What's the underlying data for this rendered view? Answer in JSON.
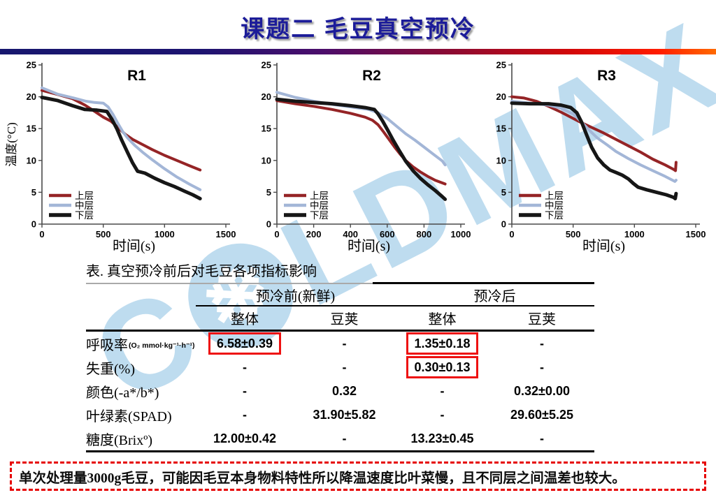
{
  "header": {
    "title": "课题二  毛豆真空预冷"
  },
  "watermark": {
    "part1": "C",
    "snowflake_icon": "❄",
    "part2": "LDMAX",
    "color": "#bedcef"
  },
  "chart_data": [
    {
      "type": "line",
      "id": "r1",
      "title": "R1",
      "xlabel": "时间(s)",
      "ylabel": "温度(°C)",
      "show_ylabel": true,
      "xlim": [
        0,
        1500
      ],
      "ylim": [
        0,
        25
      ],
      "x_ticks": [
        0,
        500,
        1000,
        1500
      ],
      "y_ticks": [
        0,
        5,
        10,
        15,
        20,
        25
      ],
      "legend_position": "lower-left",
      "grid": false,
      "series": [
        {
          "name": "上层",
          "color": "#952426",
          "line_width": 4,
          "points": [
            [
              0,
              21.0
            ],
            [
              120,
              20.4
            ],
            [
              250,
              19.7
            ],
            [
              350,
              18.7
            ],
            [
              430,
              17.7
            ],
            [
              500,
              16.8
            ],
            [
              560,
              16.2
            ],
            [
              620,
              15.2
            ],
            [
              680,
              14.1
            ],
            [
              740,
              13.3
            ],
            [
              820,
              12.5
            ],
            [
              900,
              11.7
            ],
            [
              1000,
              10.8
            ],
            [
              1100,
              10.0
            ],
            [
              1200,
              9.2
            ],
            [
              1290,
              8.5
            ]
          ]
        },
        {
          "name": "中层",
          "color": "#a3b6d7",
          "line_width": 4,
          "points": [
            [
              0,
              21.4
            ],
            [
              130,
              20.4
            ],
            [
              260,
              19.8
            ],
            [
              360,
              19.3
            ],
            [
              430,
              19.1
            ],
            [
              500,
              19.0
            ],
            [
              540,
              18.4
            ],
            [
              580,
              17.2
            ],
            [
              620,
              15.8
            ],
            [
              660,
              14.5
            ],
            [
              700,
              13.5
            ],
            [
              760,
              12.3
            ],
            [
              820,
              11.3
            ],
            [
              900,
              10.1
            ],
            [
              1000,
              8.7
            ],
            [
              1100,
              7.4
            ],
            [
              1200,
              6.3
            ],
            [
              1290,
              5.4
            ]
          ]
        },
        {
          "name": "下层",
          "color": "#161616",
          "line_width": 5,
          "points": [
            [
              0,
              19.9
            ],
            [
              130,
              19.4
            ],
            [
              250,
              18.6
            ],
            [
              350,
              18.0
            ],
            [
              450,
              17.9
            ],
            [
              530,
              17.7
            ],
            [
              570,
              16.5
            ],
            [
              610,
              15.0
            ],
            [
              650,
              13.2
            ],
            [
              700,
              11.2
            ],
            [
              740,
              9.6
            ],
            [
              780,
              8.3
            ],
            [
              840,
              8.0
            ],
            [
              920,
              7.2
            ],
            [
              1000,
              6.5
            ],
            [
              1080,
              5.9
            ],
            [
              1160,
              5.2
            ],
            [
              1230,
              4.6
            ],
            [
              1290,
              4.0
            ]
          ]
        }
      ]
    },
    {
      "type": "line",
      "id": "r2",
      "title": "R2",
      "xlabel": "时间(s)",
      "ylabel": "温度(°C)",
      "show_ylabel": false,
      "xlim": [
        0,
        1000
      ],
      "ylim": [
        0,
        25
      ],
      "x_ticks": [
        0,
        200,
        400,
        600,
        800,
        1000
      ],
      "y_ticks": [
        0,
        5,
        10,
        15,
        20,
        25
      ],
      "legend_position": "lower-left",
      "grid": false,
      "series": [
        {
          "name": "上层",
          "color": "#952426",
          "line_width": 4,
          "points": [
            [
              0,
              19.4
            ],
            [
              100,
              18.9
            ],
            [
              200,
              18.5
            ],
            [
              300,
              18.0
            ],
            [
              400,
              17.4
            ],
            [
              480,
              16.8
            ],
            [
              520,
              16.3
            ],
            [
              550,
              15.6
            ],
            [
              580,
              14.5
            ],
            [
              610,
              13.3
            ],
            [
              640,
              12.1
            ],
            [
              670,
              11.0
            ],
            [
              700,
              10.0
            ],
            [
              740,
              9.0
            ],
            [
              780,
              8.2
            ],
            [
              820,
              7.5
            ],
            [
              860,
              6.9
            ],
            [
              915,
              6.3
            ]
          ]
        },
        {
          "name": "中层",
          "color": "#a3b6d7",
          "line_width": 4,
          "points": [
            [
              0,
              20.7
            ],
            [
              100,
              19.9
            ],
            [
              200,
              19.3
            ],
            [
              300,
              18.8
            ],
            [
              400,
              18.4
            ],
            [
              500,
              18.0
            ],
            [
              550,
              17.5
            ],
            [
              600,
              16.6
            ],
            [
              650,
              15.4
            ],
            [
              700,
              14.2
            ],
            [
              750,
              13.2
            ],
            [
              800,
              12.1
            ],
            [
              850,
              11.0
            ],
            [
              900,
              9.9
            ],
            [
              915,
              9.3
            ]
          ]
        },
        {
          "name": "下层",
          "color": "#161616",
          "line_width": 5,
          "points": [
            [
              0,
              19.6
            ],
            [
              100,
              19.3
            ],
            [
              200,
              19.1
            ],
            [
              300,
              18.9
            ],
            [
              400,
              18.6
            ],
            [
              480,
              18.3
            ],
            [
              530,
              18.0
            ],
            [
              550,
              17.3
            ],
            [
              575,
              16.2
            ],
            [
              600,
              14.9
            ],
            [
              630,
              13.3
            ],
            [
              660,
              11.8
            ],
            [
              700,
              9.9
            ],
            [
              740,
              8.4
            ],
            [
              780,
              7.2
            ],
            [
              820,
              6.2
            ],
            [
              860,
              5.3
            ],
            [
              900,
              4.3
            ],
            [
              915,
              3.9
            ]
          ]
        }
      ]
    },
    {
      "type": "line",
      "id": "r3",
      "title": "R3",
      "xlabel": "时间(s)",
      "ylabel": "温度(°C)",
      "show_ylabel": false,
      "xlim": [
        0,
        1500
      ],
      "ylim": [
        0,
        25
      ],
      "x_ticks": [
        0,
        500,
        1000,
        1500
      ],
      "y_ticks": [
        0,
        5,
        10,
        15,
        20,
        25
      ],
      "legend_position": "lower-left",
      "grid": false,
      "series": [
        {
          "name": "上层",
          "color": "#952426",
          "line_width": 4,
          "points": [
            [
              0,
              20.0
            ],
            [
              100,
              19.8
            ],
            [
              200,
              19.3
            ],
            [
              300,
              18.5
            ],
            [
              400,
              17.6
            ],
            [
              500,
              16.6
            ],
            [
              560,
              16.0
            ],
            [
              650,
              15.2
            ],
            [
              750,
              14.3
            ],
            [
              850,
              13.3
            ],
            [
              950,
              12.3
            ],
            [
              1050,
              11.3
            ],
            [
              1150,
              10.2
            ],
            [
              1250,
              9.3
            ],
            [
              1320,
              8.6
            ],
            [
              1335,
              8.4
            ],
            [
              1340,
              9.7
            ]
          ]
        },
        {
          "name": "中层",
          "color": "#a3b6d7",
          "line_width": 4,
          "points": [
            [
              0,
              19.3
            ],
            [
              150,
              19.0
            ],
            [
              300,
              18.7
            ],
            [
              400,
              18.2
            ],
            [
              500,
              17.3
            ],
            [
              550,
              16.4
            ],
            [
              600,
              15.4
            ],
            [
              650,
              14.4
            ],
            [
              700,
              13.5
            ],
            [
              780,
              12.4
            ],
            [
              850,
              11.4
            ],
            [
              950,
              10.3
            ],
            [
              1050,
              9.3
            ],
            [
              1150,
              8.4
            ],
            [
              1250,
              7.5
            ],
            [
              1330,
              6.7
            ],
            [
              1340,
              6.9
            ]
          ]
        },
        {
          "name": "下层",
          "color": "#161616",
          "line_width": 5,
          "points": [
            [
              0,
              19.0
            ],
            [
              150,
              18.9
            ],
            [
              300,
              18.9
            ],
            [
              400,
              18.7
            ],
            [
              480,
              18.3
            ],
            [
              530,
              17.5
            ],
            [
              570,
              16.0
            ],
            [
              610,
              14.0
            ],
            [
              650,
              12.1
            ],
            [
              700,
              10.4
            ],
            [
              750,
              9.3
            ],
            [
              800,
              8.5
            ],
            [
              850,
              8.1
            ],
            [
              900,
              7.7
            ],
            [
              950,
              7.1
            ],
            [
              990,
              6.4
            ],
            [
              1030,
              5.8
            ],
            [
              1100,
              5.4
            ],
            [
              1180,
              5.0
            ],
            [
              1260,
              4.6
            ],
            [
              1320,
              4.2
            ],
            [
              1333,
              4.0
            ],
            [
              1340,
              4.8
            ]
          ]
        }
      ]
    }
  ],
  "table": {
    "caption": "表. 真空预冷前后对毛豆各项指标影响",
    "group_headers": [
      "预冷前(新鲜)",
      "预冷后"
    ],
    "sub_headers": [
      "整体",
      "豆荚",
      "整体",
      "豆荚"
    ],
    "rows": [
      {
        "label": "呼吸率",
        "label_note": "(O₂ mmol·kg⁻¹·h⁻¹)",
        "cells": [
          {
            "text": "6.58±0.39"
          },
          {
            "text": "-"
          },
          {
            "text": "1.35±0.18"
          },
          {
            "text": "-"
          }
        ]
      },
      {
        "label": "失重(%)",
        "cells": [
          {
            "text": "-"
          },
          {
            "text": "-"
          },
          {
            "text": "0.30±0.13"
          },
          {
            "text": "-"
          }
        ]
      },
      {
        "label": "颜色(-a*/b*)",
        "cells": [
          {
            "text": "-"
          },
          {
            "text": "0.32"
          },
          {
            "text": "-"
          },
          {
            "text": "0.32±0.00"
          }
        ]
      },
      {
        "label": "叶绿素(SPAD)",
        "cells": [
          {
            "text": "-"
          },
          {
            "text": "31.90±5.82"
          },
          {
            "text": "-"
          },
          {
            "text": "29.60±5.25"
          }
        ]
      },
      {
        "label": "糖度(Brixº)",
        "cells": [
          {
            "text": "12.00±0.42"
          },
          {
            "text": "-"
          },
          {
            "text": "13.23±0.45"
          },
          {
            "text": "-"
          }
        ]
      }
    ]
  },
  "note": {
    "text": "单次处理量3000g毛豆，可能因毛豆本身物料特性所以降温速度比叶菜慢，且不同层之间温差也较大。"
  },
  "colors": {
    "upper_layer": "#952426",
    "middle_layer": "#a3b6d7",
    "lower_layer": "#161616",
    "title_blue": "#1c1c99",
    "highlight_box_red": "#ee1111",
    "note_border_red": "#e60000"
  }
}
